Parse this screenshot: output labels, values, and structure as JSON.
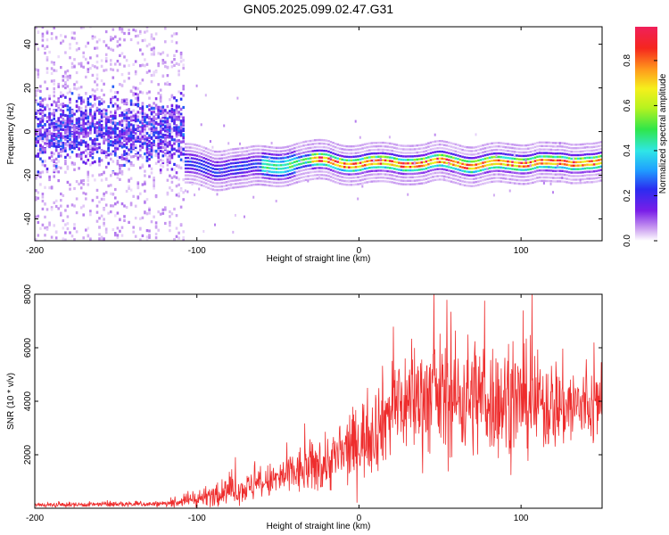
{
  "title": "GN05.2025.099.02.47.G31",
  "chart_data": [
    {
      "type": "heatmap",
      "xlabel": "Height of straight line (km)",
      "ylabel": "Frequency (Hz)",
      "xlim": [
        -200,
        150
      ],
      "ylim": [
        -50,
        48
      ],
      "x_ticks": [
        -200,
        -100,
        0,
        100
      ],
      "y_ticks": [
        -40,
        -20,
        0,
        20,
        40
      ],
      "colorbar": {
        "label": "Normalized spectral amplitude",
        "range": [
          0.0,
          0.95
        ],
        "ticks": [
          0.0,
          0.2,
          0.4,
          0.6,
          0.8
        ],
        "colors": [
          "#ffffff",
          "#c89af0",
          "#7a1ee8",
          "#2b2cf0",
          "#1f9fff",
          "#2fe6e6",
          "#2fe64a",
          "#b6f21f",
          "#f5f01c",
          "#ff9a1c",
          "#f5261e",
          "#f0205a"
        ]
      },
      "ridge": {
        "x": [
          -110,
          -100,
          -90,
          -80,
          -70,
          -60,
          -50,
          -40,
          -30,
          -20,
          -10,
          0,
          10,
          20,
          30,
          40,
          50,
          60,
          70,
          80,
          90,
          100,
          110,
          120,
          130,
          140,
          150
        ],
        "frequency": [
          -15,
          -16,
          -17,
          -16,
          -17,
          -16,
          -15,
          -14,
          -14,
          -13,
          -14,
          -15,
          -15,
          -14,
          -14,
          -15,
          -14,
          -14,
          -15,
          -15,
          -15,
          -14,
          -13,
          -15,
          -15,
          -13,
          -13
        ]
      }
    },
    {
      "type": "line",
      "xlabel": "Height of straight line (km)",
      "ylabel": "SNR (10 * v/v)",
      "xlim": [
        -200,
        150
      ],
      "ylim": [
        0,
        8000
      ],
      "x_ticks": [
        -200,
        -100,
        0,
        100
      ],
      "y_ticks": [
        2000,
        4000,
        6000,
        8000
      ],
      "color": "#ee2d2d",
      "envelope": {
        "x": [
          -200,
          -150,
          -120,
          -110,
          -100,
          -90,
          -80,
          -70,
          -60,
          -50,
          -40,
          -30,
          -20,
          -10,
          0,
          10,
          20,
          30,
          40,
          50,
          60,
          70,
          80,
          90,
          100,
          110,
          120,
          130,
          140,
          150
        ],
        "mean": [
          120,
          150,
          160,
          250,
          350,
          500,
          650,
          750,
          900,
          1100,
          1300,
          1500,
          1700,
          2000,
          2500,
          3000,
          3700,
          4000,
          4200,
          4200,
          4100,
          4200,
          4100,
          4000,
          4000,
          3900,
          3900,
          3800,
          3800,
          3800
        ],
        "spread": [
          80,
          90,
          100,
          200,
          300,
          350,
          450,
          500,
          550,
          650,
          800,
          900,
          1000,
          1100,
          1300,
          1500,
          1700,
          1800,
          2000,
          2000,
          2000,
          2100,
          2000,
          1900,
          1800,
          1700,
          1600,
          1500,
          1400,
          1300
        ]
      }
    }
  ]
}
